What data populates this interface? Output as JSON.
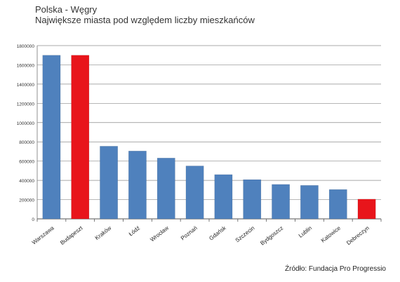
{
  "chart_data": {
    "type": "bar",
    "title": "Polska - Węgry",
    "subtitle": "Największe miasta pod względem liczby mieszkańców",
    "categories": [
      "Warszawa",
      "Budapeszt",
      "Kraków",
      "Łódź",
      "Wrocław",
      "Poznań",
      "Gdańsk",
      "Szczecin",
      "Bydgoszcz",
      "Lublin",
      "Katowice",
      "Debreczyn"
    ],
    "values": [
      1700000,
      1700000,
      755000,
      705000,
      632000,
      550000,
      460000,
      408000,
      358000,
      348000,
      305000,
      205000
    ],
    "colors": [
      "#4f81bd",
      "#e8151b",
      "#4f81bd",
      "#4f81bd",
      "#4f81bd",
      "#4f81bd",
      "#4f81bd",
      "#4f81bd",
      "#4f81bd",
      "#4f81bd",
      "#4f81bd",
      "#e8151b"
    ],
    "yticks": [
      0,
      200000,
      400000,
      600000,
      800000,
      1000000,
      1200000,
      1400000,
      1600000,
      1800000
    ],
    "ylim": [
      0,
      1800000
    ],
    "xlabel": "",
    "ylabel": "",
    "grid": true,
    "legend": "none",
    "source": "Źródło: Fundacja Pro Progressio"
  }
}
